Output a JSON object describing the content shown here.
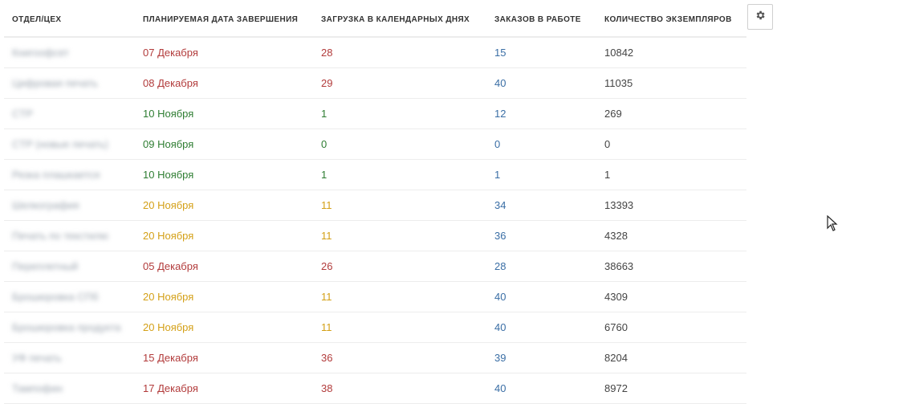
{
  "columns": [
    "Отдел/цех",
    "Планируемая дата завершения",
    "Загрузка в календарных днях",
    "Заказов в работе",
    "Количество экземпляров"
  ],
  "status_colors": {
    "red": "#b23b3b",
    "green": "#2e7d32",
    "yellow": "#d4a017",
    "blue": "#3a6ea5"
  },
  "rows": [
    {
      "dept": "Книгоофсет",
      "date": "07 Декабря",
      "load": "28",
      "orders": "15",
      "copies": "10842",
      "status": "red"
    },
    {
      "dept": "Цифровая печать",
      "date": "08 Декабря",
      "load": "29",
      "orders": "40",
      "copies": "11035",
      "status": "red"
    },
    {
      "dept": "CTP",
      "date": "10 Ноября",
      "load": "1",
      "orders": "12",
      "copies": "269",
      "status": "green"
    },
    {
      "dept": "CTP (новые печать)",
      "date": "09 Ноября",
      "load": "0",
      "orders": "0",
      "copies": "0",
      "status": "green"
    },
    {
      "dept": "Резка плашкается",
      "date": "10 Ноября",
      "load": "1",
      "orders": "1",
      "copies": "1",
      "status": "green"
    },
    {
      "dept": "Шелкография",
      "date": "20 Ноября",
      "load": "11",
      "orders": "34",
      "copies": "13393",
      "status": "yellow"
    },
    {
      "dept": "Печать по текстилю",
      "date": "20 Ноября",
      "load": "11",
      "orders": "36",
      "copies": "4328",
      "status": "yellow"
    },
    {
      "dept": "Переплетный",
      "date": "05 Декабря",
      "load": "26",
      "orders": "28",
      "copies": "38663",
      "status": "red"
    },
    {
      "dept": "Брошюровка СПб",
      "date": "20 Ноября",
      "load": "11",
      "orders": "40",
      "copies": "4309",
      "status": "yellow"
    },
    {
      "dept": "Брошюровка продукта",
      "date": "20 Ноября",
      "load": "11",
      "orders": "40",
      "copies": "6760",
      "status": "yellow"
    },
    {
      "dept": "УФ печать",
      "date": "15 Декабря",
      "load": "36",
      "orders": "39",
      "copies": "8204",
      "status": "red"
    },
    {
      "dept": "Тампофин",
      "date": "17 Декабря",
      "load": "38",
      "orders": "40",
      "copies": "8972",
      "status": "red"
    }
  ],
  "icons": {
    "settings": "gear-icon",
    "cursor": "mouse-pointer-icon"
  }
}
